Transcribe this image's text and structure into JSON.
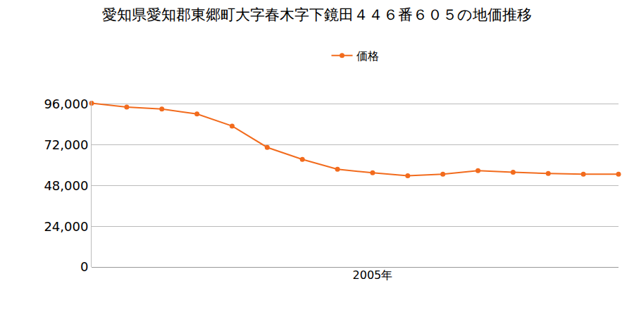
{
  "chart_data": {
    "type": "line",
    "title": "愛知県愛知郡東郷町大字春木字下鏡田４４６番６０５の地価推移",
    "categories": [
      null,
      null,
      null,
      null,
      null,
      null,
      null,
      null,
      "2005年",
      null,
      null,
      null,
      null,
      null,
      null,
      null
    ],
    "series": [
      {
        "name": "価格",
        "color": "#f26b1d",
        "marker": "circle",
        "line_style": "solid",
        "values": [
          96500,
          94300,
          93100,
          90200,
          83100,
          70500,
          63400,
          57600,
          55500,
          53800,
          54700,
          56800,
          55900,
          55100,
          54700,
          54700
        ]
      }
    ],
    "ylim": [
      0,
      98000
    ],
    "yticks": [
      0,
      {
        "value": 24000,
        "label": "24,000"
      },
      {
        "value": 48000,
        "label": "48,000"
      },
      {
        "value": 72000,
        "label": "72,000"
      },
      {
        "value": 96000,
        "label": "96,000"
      }
    ],
    "grid": true,
    "legend": "top"
  }
}
